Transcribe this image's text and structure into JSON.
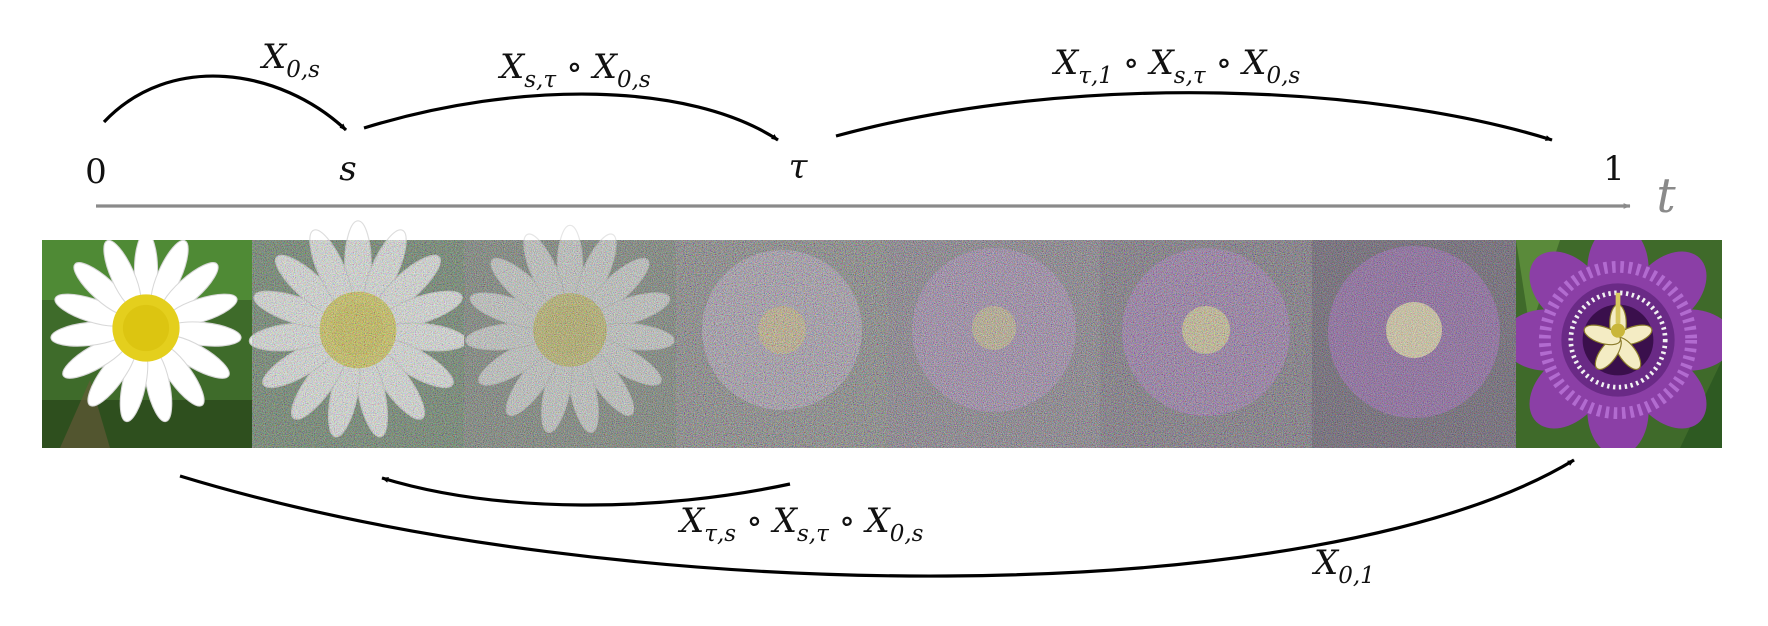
{
  "axis": {
    "variable": "t",
    "ticks": [
      {
        "label": "0",
        "italic": false
      },
      {
        "label": "s",
        "italic": true
      },
      {
        "label": "τ",
        "italic": true
      },
      {
        "label": "1",
        "italic": false
      }
    ]
  },
  "frames": {
    "source_image": "white-daisy-photo",
    "target_image": "purple-passionflower-photo",
    "count": 8
  },
  "arrows": {
    "top": [
      {
        "from": "0",
        "to": "s",
        "main": "X",
        "sub": "0,s",
        "parts": [
          [
            "X",
            "0,s"
          ]
        ]
      },
      {
        "from": "s",
        "to": "τ",
        "main": "X",
        "sub": "s,τ",
        "parts": [
          [
            "X",
            "s,τ"
          ],
          [
            "X",
            "0,s"
          ]
        ]
      },
      {
        "from": "τ",
        "to": "1",
        "main": "X",
        "sub": "τ,1",
        "parts": [
          [
            "X",
            "τ,1"
          ],
          [
            "X",
            "s,τ"
          ],
          [
            "X",
            "0,s"
          ]
        ]
      }
    ],
    "bottom": [
      {
        "from": "τ",
        "to": "s",
        "parts": [
          [
            "X",
            "τ,s"
          ],
          [
            "X",
            "s,τ"
          ],
          [
            "X",
            "0,s"
          ]
        ]
      },
      {
        "from": "0",
        "to": "1",
        "parts": [
          [
            "X",
            "0,1"
          ]
        ]
      }
    ]
  },
  "labels": {
    "op": "∘",
    "top_arrow_0": "X",
    "top_arrow_0_sub": "0,s",
    "top_arrow_1_a": "X",
    "top_arrow_1_a_sub": "s,τ",
    "top_arrow_1_b": "X",
    "top_arrow_1_b_sub": "0,s",
    "top_arrow_2_a": "X",
    "top_arrow_2_a_sub": "τ,1",
    "top_arrow_2_b": "X",
    "top_arrow_2_b_sub": "s,τ",
    "top_arrow_2_c": "X",
    "top_arrow_2_c_sub": "0,s",
    "bottom_arrow_0_a": "X",
    "bottom_arrow_0_a_sub": "τ,s",
    "bottom_arrow_0_b": "X",
    "bottom_arrow_0_b_sub": "s,τ",
    "bottom_arrow_0_c": "X",
    "bottom_arrow_0_c_sub": "0,s",
    "bottom_arrow_1": "X",
    "bottom_arrow_1_sub": "0,1"
  }
}
